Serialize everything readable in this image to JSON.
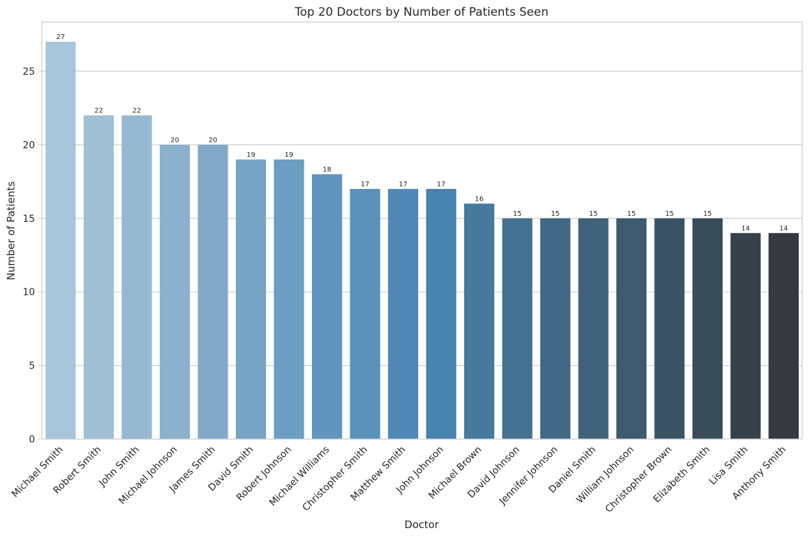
{
  "chart_data": {
    "type": "bar",
    "title": "Top 20 Doctors by Number of Patients Seen",
    "xlabel": "Doctor",
    "ylabel": "Number of Patients",
    "categories": [
      "Michael Smith",
      "Robert Smith",
      "John Smith",
      "Michael Johnson",
      "James Smith",
      "David Smith",
      "Robert Johnson",
      "Michael Williams",
      "Christopher Smith",
      "Matthew Smith",
      "John Johnson",
      "Michael Brown",
      "David Johnson",
      "Jennifer Johnson",
      "Daniel Smith",
      "William Johnson",
      "Christopher Brown",
      "Elizabeth Smith",
      "Lisa Smith",
      "Anthony Smith"
    ],
    "values": [
      27,
      22,
      22,
      20,
      20,
      19,
      19,
      18,
      17,
      17,
      17,
      16,
      15,
      15,
      15,
      15,
      15,
      15,
      14,
      14
    ],
    "ylim": [
      0,
      28.35
    ],
    "yticks": [
      0,
      5,
      10,
      15,
      20,
      25
    ],
    "grid": "horizontal",
    "bar_colors": [
      "#a7c6dc",
      "#a0c0d6",
      "#97b8d1",
      "#8bb1cc",
      "#82a8c8",
      "#76a4c4",
      "#6b9ec2",
      "#6095bf",
      "#5991bb",
      "#5188b8",
      "#4882ae",
      "#45799e",
      "#44718f",
      "#426886",
      "#40617a",
      "#3d5a6f",
      "#3b5465",
      "#394c5a",
      "#374149",
      "#343a3f"
    ]
  }
}
